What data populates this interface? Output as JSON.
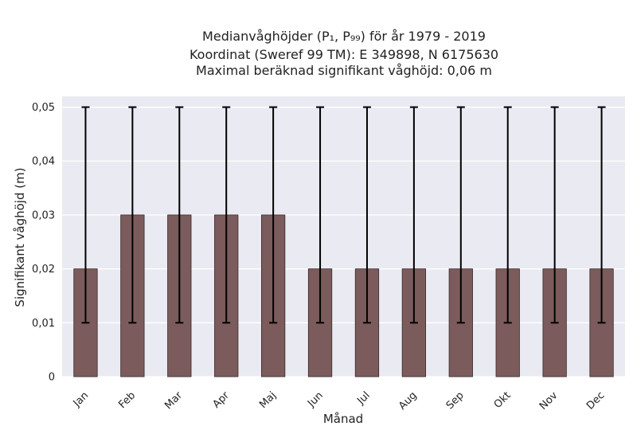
{
  "chart_data": {
    "type": "bar",
    "title_lines": [
      "Medianvåghöjder (P₁, P₉₉) för år 1979 - 2019",
      "Koordinat (Sweref 99 TM): E 349898, N 6175630",
      "Maximal beräknad signifikant våghöjd: 0,06 m"
    ],
    "xlabel": "Månad",
    "ylabel": "Signifikant våghöjd (m)",
    "categories": [
      "Jan",
      "Feb",
      "Mar",
      "Apr",
      "Maj",
      "Jun",
      "Jul",
      "Aug",
      "Sep",
      "Okt",
      "Nov",
      "Dec"
    ],
    "values": [
      0.02,
      0.03,
      0.03,
      0.03,
      0.03,
      0.02,
      0.02,
      0.02,
      0.02,
      0.02,
      0.02,
      0.02
    ],
    "error_low": [
      0.01,
      0.01,
      0.01,
      0.01,
      0.01,
      0.01,
      0.01,
      0.01,
      0.01,
      0.01,
      0.01,
      0.01
    ],
    "error_high": [
      0.05,
      0.05,
      0.05,
      0.05,
      0.05,
      0.05,
      0.05,
      0.05,
      0.05,
      0.05,
      0.05,
      0.05
    ],
    "ylim": [
      0,
      0.052
    ],
    "yticks": [
      0,
      0.01,
      0.02,
      0.03,
      0.04,
      0.05
    ],
    "ytick_labels": [
      "0",
      "0,01",
      "0,02",
      "0,03",
      "0,04",
      "0,05"
    ],
    "grid": true,
    "colors": {
      "bar": "#7b5b5b",
      "bar_edge": "#3a2a2a",
      "plot_bg": "#eaeaf2",
      "grid": "#ffffff",
      "error": "#000000"
    }
  }
}
